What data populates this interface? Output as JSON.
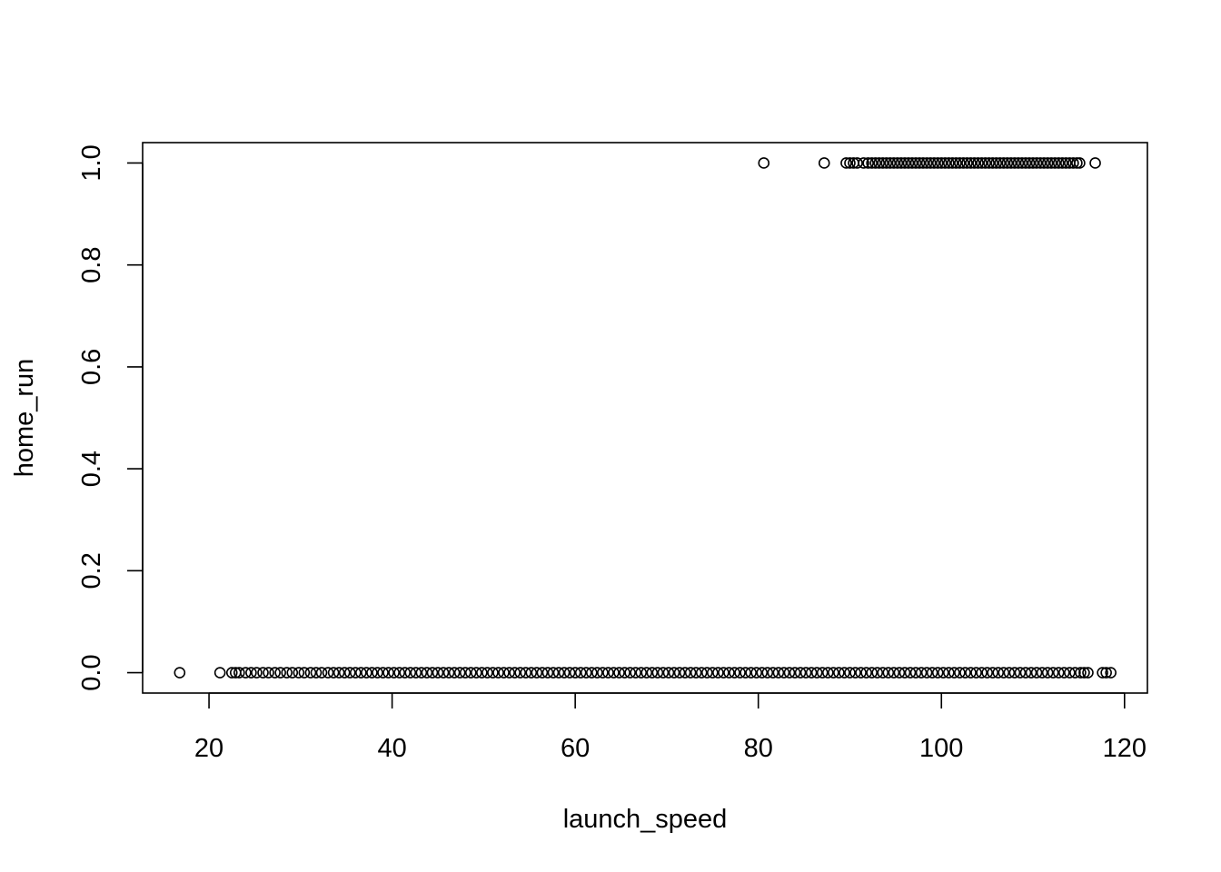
{
  "chart_data": {
    "type": "scatter",
    "title": "",
    "xlabel": "launch_speed",
    "ylabel": "home_run",
    "xlim": [
      12.75,
      122.5
    ],
    "ylim": [
      -0.04,
      1.04
    ],
    "xticks": [
      20,
      40,
      60,
      80,
      100,
      120
    ],
    "yticks": [
      0.0,
      0.2,
      0.4,
      0.6,
      0.8,
      1.0
    ],
    "xtick_labels": [
      "20",
      "40",
      "60",
      "80",
      "100",
      "120"
    ],
    "ytick_labels": [
      "0.0",
      "0.2",
      "0.4",
      "0.6",
      "0.8",
      "1.0"
    ],
    "grid": false,
    "marker": "open-circle",
    "series": [
      {
        "values_y": 1,
        "x": [
          80.6,
          87.2,
          89.6,
          90.0,
          90.4,
          90.8,
          91.5,
          92.0,
          92.4,
          92.8,
          93.2,
          93.6,
          94.0,
          94.4,
          94.8,
          95.2,
          95.6,
          96.0,
          96.4,
          96.8,
          97.2,
          97.6,
          98.0,
          98.4,
          98.8,
          99.2,
          99.6,
          100.0,
          100.4,
          100.8,
          101.2,
          101.6,
          102.0,
          102.4,
          102.8,
          103.2,
          103.6,
          104.0,
          104.4,
          104.8,
          105.2,
          105.6,
          106.0,
          106.4,
          106.8,
          107.2,
          107.6,
          108.0,
          108.4,
          108.8,
          109.2,
          109.6,
          110.0,
          110.4,
          110.8,
          111.2,
          111.6,
          112.0,
          112.4,
          112.8,
          113.2,
          113.6,
          114.0,
          114.4,
          114.8,
          115.1,
          116.8
        ]
      },
      {
        "values_y": 0,
        "x": [
          16.8,
          21.2,
          22.5,
          22.9,
          23.3,
          24.0,
          24.6,
          25.2,
          25.9,
          26.5,
          27.2,
          27.8,
          28.5,
          29.1,
          29.8,
          30.4,
          31.1,
          31.7,
          32.3,
          33.0,
          33.6,
          34.2,
          34.8,
          35.4,
          36.0,
          36.6,
          37.2,
          37.8,
          38.4,
          39.0,
          39.6,
          40.2,
          40.8,
          41.4,
          42.0,
          42.6,
          43.2,
          43.8,
          44.4,
          45.0,
          45.6,
          46.2,
          46.8,
          47.4,
          48.0,
          48.6,
          49.2,
          49.8,
          50.4,
          51.0,
          51.6,
          52.2,
          52.8,
          53.4,
          54.0,
          54.6,
          55.2,
          55.8,
          56.4,
          57.0,
          57.6,
          58.2,
          58.8,
          59.4,
          60.0,
          60.6,
          61.2,
          61.8,
          62.4,
          63.0,
          63.6,
          64.2,
          64.8,
          65.4,
          66.0,
          66.6,
          67.2,
          67.8,
          68.4,
          69.0,
          69.6,
          70.2,
          70.8,
          71.4,
          72.0,
          72.6,
          73.2,
          73.8,
          74.4,
          75.0,
          75.6,
          76.2,
          76.8,
          77.4,
          78.0,
          78.6,
          79.2,
          79.8,
          80.4,
          81.0,
          81.6,
          82.2,
          82.8,
          83.4,
          84.0,
          84.6,
          85.2,
          85.8,
          86.4,
          87.0,
          87.6,
          88.2,
          88.8,
          89.4,
          90.0,
          90.6,
          91.2,
          91.8,
          92.4,
          93.0,
          93.6,
          94.2,
          94.8,
          95.4,
          96.0,
          96.6,
          97.2,
          97.8,
          98.4,
          99.0,
          99.6,
          100.2,
          100.8,
          101.4,
          102.0,
          102.6,
          103.2,
          103.8,
          104.4,
          105.0,
          105.6,
          106.2,
          106.8,
          107.4,
          108.0,
          108.6,
          109.2,
          109.8,
          110.4,
          111.0,
          111.6,
          112.2,
          112.8,
          113.4,
          114.0,
          114.6,
          115.2,
          115.6,
          116.0,
          117.6,
          118.0,
          118.5
        ]
      }
    ]
  }
}
